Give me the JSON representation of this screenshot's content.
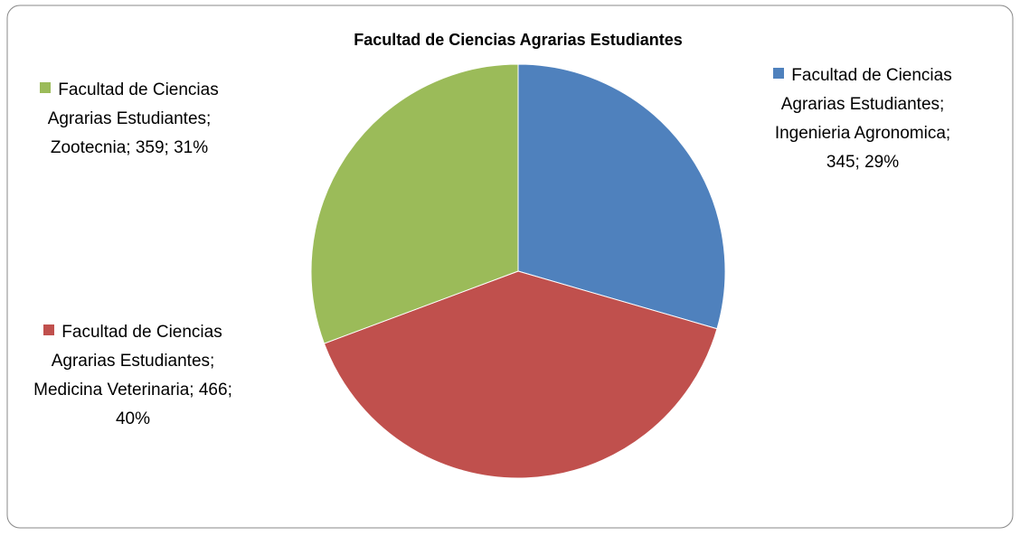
{
  "chart_data": {
    "type": "pie",
    "title": "Facultad de Ciencias Agrarias Estudiantes",
    "series": [
      {
        "name": "Facultad de Ciencias Agrarias Estudiantes",
        "categories": [
          "Ingenieria Agronomica",
          "Medicina Veterinaria",
          "Zootecnia"
        ],
        "values": [
          345,
          466,
          359
        ],
        "colors": [
          "#4f81bd",
          "#c0504d",
          "#9bbb59"
        ],
        "value_labels": [
          "Facultad de Ciencias Agrarias Estudiantes; Ingenieria Agronomica; 345; 29%",
          "Facultad de Ciencias Agrarias Estudiantes; Medicina Veterinaria; 466; 40%",
          "Facultad de Ciencias Agrarias Estudiantes; Zootecnia; 359; 31%"
        ]
      }
    ]
  }
}
